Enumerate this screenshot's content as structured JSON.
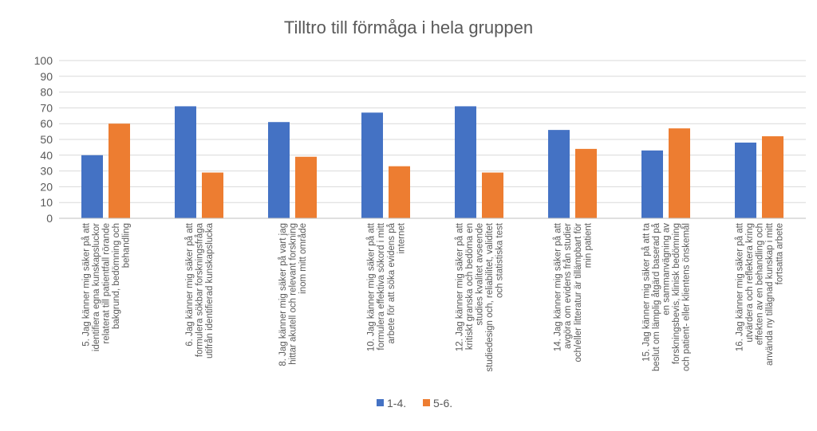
{
  "chart_data": {
    "type": "bar",
    "title": "Tilltro till förmåga i hela gruppen",
    "ylim": [
      0,
      100
    ],
    "yticks": [
      0,
      10,
      20,
      30,
      40,
      50,
      60,
      70,
      80,
      90,
      100
    ],
    "grid": true,
    "legend_position": "bottom",
    "categories": [
      [
        "5. Jag känner mig säker på att",
        "identifiera egna kunskapsluckor",
        "relaterat till patientfall rörande",
        "bakgrund, bedömning och",
        "behandling"
      ],
      [
        "6. Jag känner mig säker på att",
        "formulera sökbar forskningsfråga",
        "utifrån identifierad kunskapslucka"
      ],
      [
        "8. Jag känner mig säker på vart jag",
        "hittar akutell och relevant forskning",
        "inom mitt område"
      ],
      [
        "10. Jag känner mig säker på att",
        "formulera effektiva sökord i mitt",
        "arbete för att söka evidens på",
        "internet"
      ],
      [
        "12. Jag känner mig säker på att",
        "kritiskt granska och bedöma en",
        "studies kvalitet avseende",
        "studiedesign och, reliabilitet, validitet",
        "och statistiska test"
      ],
      [
        "14. Jag känner mig säker på att",
        "avgöra om evidens från studier",
        "och/eller litteratur är tillämpbart för",
        "min patient"
      ],
      [
        "15. Jag känner mig säker på att ta",
        "beslut om lämplig åtgärd baserad på",
        "en sammanvägning av",
        "forskningsbevis, klinisk bedömning",
        "och patient- eller klientens önskemål"
      ],
      [
        "16. Jag känner mig säker på att",
        "utvärdera och reflektera kring",
        "effekten av en behandling och",
        "använda ny tillägnad kunskap i mitt",
        "fortsatta arbete"
      ]
    ],
    "series": [
      {
        "name": "1-4.",
        "color": "#4472c4",
        "values": [
          40,
          71,
          61,
          67,
          71,
          56,
          43,
          48
        ]
      },
      {
        "name": "5-6.",
        "color": "#ed7d31",
        "values": [
          60,
          29,
          39,
          33,
          29,
          44,
          57,
          52
        ]
      }
    ]
  }
}
